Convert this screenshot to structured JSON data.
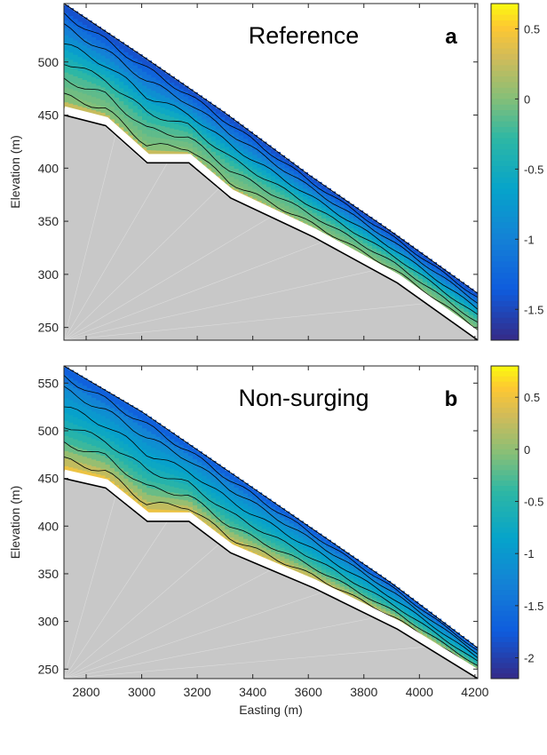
{
  "chart_data": [
    {
      "type": "contour",
      "panel_label": "a",
      "title": "Reference",
      "xlabel": "",
      "ylabel": "Elevation (m)",
      "xlim": [
        2720,
        4210
      ],
      "ylim": [
        238,
        555
      ],
      "yticks": [
        250,
        300,
        350,
        400,
        450,
        500
      ],
      "xticks": [],
      "colorbar": {
        "range": [
          -1.72,
          0.68
        ],
        "ticks": [
          0.5,
          0,
          -0.5,
          -1,
          -1.5
        ]
      },
      "bed_profile": {
        "x": [
          2720,
          2870,
          3020,
          3170,
          3320,
          3620,
          3920,
          4210
        ],
        "y": [
          450,
          440,
          405,
          405,
          372,
          335,
          292,
          238
        ]
      },
      "surface_profile": {
        "x": [
          2720,
          3000,
          3300,
          3600,
          3900,
          4210
        ],
        "y": [
          555,
          506,
          452,
          394,
          340,
          282
        ]
      },
      "bands": [
        {
          "frac": 0.0,
          "value": 0.4
        },
        {
          "frac": 0.1,
          "value": 0.0
        },
        {
          "frac": 0.35,
          "value": -0.2
        },
        {
          "frac": 0.6,
          "value": -0.7
        },
        {
          "frac": 0.8,
          "value": -1.1
        },
        {
          "frac": 1.0,
          "value": -1.5
        }
      ]
    },
    {
      "type": "contour",
      "panel_label": "b",
      "title": "Non-surging",
      "xlabel": "Easting (m)",
      "ylabel": "Elevation (m)",
      "xlim": [
        2720,
        4210
      ],
      "ylim": [
        240,
        568
      ],
      "yticks": [
        250,
        300,
        350,
        400,
        450,
        500,
        550
      ],
      "xticks": [
        2800,
        3000,
        3200,
        3400,
        3600,
        3800,
        4000,
        4200
      ],
      "colorbar": {
        "range": [
          -2.2,
          0.8
        ],
        "ticks": [
          0.5,
          0,
          -0.5,
          -1,
          -1.5,
          -2
        ]
      },
      "bed_profile": {
        "x": [
          2720,
          2870,
          3020,
          3170,
          3320,
          3620,
          3920,
          4210
        ],
        "y": [
          450,
          440,
          405,
          405,
          372,
          335,
          292,
          240
        ]
      },
      "surface_profile": {
        "x": [
          2720,
          3000,
          3300,
          3600,
          3900,
          4210
        ],
        "y": [
          568,
          520,
          460,
          400,
          340,
          272
        ]
      },
      "bands": [
        {
          "frac": 0.0,
          "value": 0.6
        },
        {
          "frac": 0.12,
          "value": 0.2
        },
        {
          "frac": 0.3,
          "value": -0.3
        },
        {
          "frac": 0.55,
          "value": -0.8
        },
        {
          "frac": 0.8,
          "value": -1.2
        },
        {
          "frac": 1.0,
          "value": -1.8
        }
      ]
    }
  ]
}
